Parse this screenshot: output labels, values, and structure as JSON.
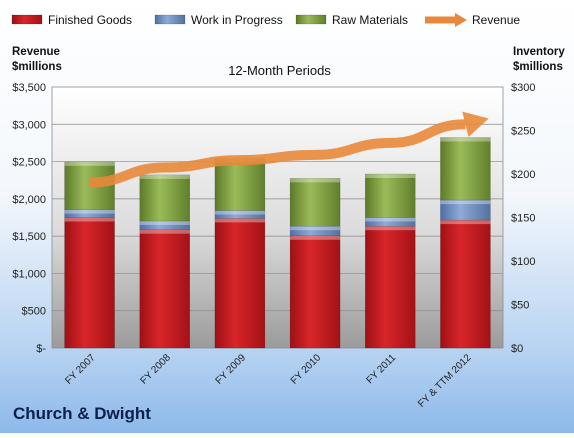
{
  "company": "Church & Dwight",
  "chart_data": {
    "type": "bar",
    "stacked": true,
    "title": "12-Month Periods",
    "ylabel_left": [
      "Revenue",
      "$millions"
    ],
    "ylabel_right": [
      "Inventory",
      "$millions"
    ],
    "categories": [
      "FY 2007",
      "FY 2008",
      "FY 2009",
      "FY 2010",
      "FY 2011",
      "FY & TTM 2012"
    ],
    "left_axis": {
      "min": 0,
      "max": 3500,
      "step": 500,
      "tick_labels": [
        "$-",
        "$500",
        "$1,000",
        "$1,500",
        "$2,000",
        "$2,500",
        "$3,000",
        "$3,500"
      ]
    },
    "right_axis": {
      "min": 0,
      "max": 300,
      "step": 50,
      "tick_labels": [
        "$0",
        "$50",
        "$100",
        "$150",
        "$200",
        "$250",
        "$300"
      ]
    },
    "series": [
      {
        "name": "Finished Goods",
        "axis": "right",
        "color": "#c0171c",
        "values": [
          150,
          136,
          149,
          129,
          140,
          147
        ]
      },
      {
        "name": "Work in Progress",
        "axis": "right",
        "color": "#6d8fc4",
        "values": [
          9,
          10,
          9,
          11,
          10,
          23
        ]
      },
      {
        "name": "Raw Materials",
        "axis": "right",
        "color": "#7a9a3c",
        "values": [
          55,
          53,
          60,
          55,
          50,
          72
        ]
      },
      {
        "name": "Revenue",
        "axis": "left",
        "type": "line",
        "color": "#e8883a",
        "values": [
          2220,
          2420,
          2520,
          2590,
          2750,
          3000
        ]
      }
    ],
    "legend": "top",
    "grid": true
  }
}
